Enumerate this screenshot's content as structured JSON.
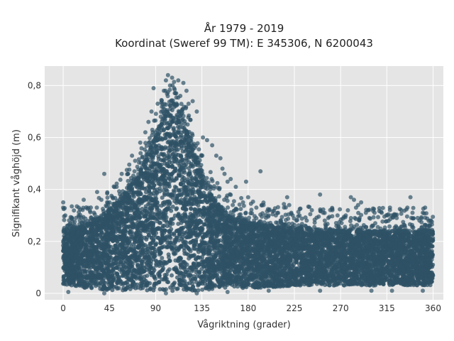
{
  "chart_data": {
    "type": "scatter",
    "title": "År 1979 - 2019",
    "subtitle": "Koordinat (Sweref 99 TM): E 345306, N 6200043",
    "xlabel": "Vågriktning (grader)",
    "ylabel": "Signifikant våghöjd (m)",
    "xlim": [
      -18,
      370
    ],
    "ylim": [
      -0.025,
      0.875
    ],
    "xticks": [
      0,
      45,
      90,
      135,
      180,
      225,
      270,
      315,
      360
    ],
    "xtick_labels": [
      "0",
      "45",
      "90",
      "135",
      "180",
      "225",
      "270",
      "315",
      "360"
    ],
    "yticks": [
      0,
      0.2,
      0.4,
      0.6,
      0.8
    ],
    "ytick_labels": [
      "0",
      "0,2",
      "0,4",
      "0,6",
      "0,8"
    ],
    "grid": true,
    "marker_color": "#2f5266",
    "plot_background": "#e5e5e5",
    "envelope": {
      "direction": [
        0,
        10,
        20,
        30,
        45,
        60,
        75,
        90,
        100,
        105,
        110,
        120,
        130,
        140,
        150,
        160,
        170,
        180,
        200,
        225,
        270,
        315,
        360
      ],
      "upper_hs": [
        0.24,
        0.25,
        0.26,
        0.28,
        0.32,
        0.38,
        0.47,
        0.6,
        0.7,
        0.74,
        0.72,
        0.63,
        0.52,
        0.4,
        0.34,
        0.3,
        0.28,
        0.27,
        0.26,
        0.25,
        0.24,
        0.24,
        0.24
      ],
      "lower_hs": [
        0.03,
        0.03,
        0.02,
        0.02,
        0.01,
        0.01,
        0.01,
        0.01,
        0.01,
        0.01,
        0.01,
        0.01,
        0.01,
        0.01,
        0.02,
        0.02,
        0.02,
        0.02,
        0.02,
        0.03,
        0.03,
        0.03,
        0.03
      ]
    },
    "outliers": [
      {
        "x": 0,
        "y": 0.35
      },
      {
        "x": 0,
        "y": 0.33
      },
      {
        "x": 2,
        "y": 0.3
      },
      {
        "x": 4,
        "y": 0.26
      },
      {
        "x": 20,
        "y": 0.36
      },
      {
        "x": 27,
        "y": 0.29
      },
      {
        "x": 30,
        "y": 0.31
      },
      {
        "x": 33,
        "y": 0.39
      },
      {
        "x": 40,
        "y": 0.46
      },
      {
        "x": 45,
        "y": 0.35
      },
      {
        "x": 48,
        "y": 0.37
      },
      {
        "x": 50,
        "y": 0.34
      },
      {
        "x": 52,
        "y": 0.41
      },
      {
        "x": 57,
        "y": 0.46
      },
      {
        "x": 63,
        "y": 0.46
      },
      {
        "x": 67,
        "y": 0.53
      },
      {
        "x": 70,
        "y": 0.51
      },
      {
        "x": 75,
        "y": 0.58
      },
      {
        "x": 80,
        "y": 0.62
      },
      {
        "x": 83,
        "y": 0.66
      },
      {
        "x": 86,
        "y": 0.7
      },
      {
        "x": 88,
        "y": 0.79
      },
      {
        "x": 92,
        "y": 0.73
      },
      {
        "x": 95,
        "y": 0.68
      },
      {
        "x": 98,
        "y": 0.78
      },
      {
        "x": 100,
        "y": 0.82
      },
      {
        "x": 102,
        "y": 0.84
      },
      {
        "x": 104,
        "y": 0.8
      },
      {
        "x": 106,
        "y": 0.83
      },
      {
        "x": 108,
        "y": 0.79
      },
      {
        "x": 110,
        "y": 0.77
      },
      {
        "x": 112,
        "y": 0.82
      },
      {
        "x": 114,
        "y": 0.76
      },
      {
        "x": 117,
        "y": 0.81
      },
      {
        "x": 120,
        "y": 0.78
      },
      {
        "x": 122,
        "y": 0.73
      },
      {
        "x": 126,
        "y": 0.74
      },
      {
        "x": 130,
        "y": 0.7
      },
      {
        "x": 136,
        "y": 0.6
      },
      {
        "x": 140,
        "y": 0.59
      },
      {
        "x": 145,
        "y": 0.57
      },
      {
        "x": 149,
        "y": 0.53
      },
      {
        "x": 153,
        "y": 0.52
      },
      {
        "x": 155,
        "y": 0.48
      },
      {
        "x": 157,
        "y": 0.46
      },
      {
        "x": 160,
        "y": 0.43
      },
      {
        "x": 163,
        "y": 0.44
      },
      {
        "x": 168,
        "y": 0.41
      },
      {
        "x": 175,
        "y": 0.35
      },
      {
        "x": 178,
        "y": 0.43
      },
      {
        "x": 180,
        "y": 0.37
      },
      {
        "x": 188,
        "y": 0.33
      },
      {
        "x": 192,
        "y": 0.47
      },
      {
        "x": 195,
        "y": 0.34
      },
      {
        "x": 200,
        "y": 0.3
      },
      {
        "x": 207,
        "y": 0.3
      },
      {
        "x": 212,
        "y": 0.27
      },
      {
        "x": 215,
        "y": 0.33
      },
      {
        "x": 218,
        "y": 0.37
      },
      {
        "x": 220,
        "y": 0.34
      },
      {
        "x": 222,
        "y": 0.31
      },
      {
        "x": 227,
        "y": 0.28
      },
      {
        "x": 230,
        "y": 0.3
      },
      {
        "x": 237,
        "y": 0.28
      },
      {
        "x": 242,
        "y": 0.32
      },
      {
        "x": 250,
        "y": 0.38
      },
      {
        "x": 253,
        "y": 0.31
      },
      {
        "x": 258,
        "y": 0.29
      },
      {
        "x": 262,
        "y": 0.32
      },
      {
        "x": 267,
        "y": 0.3
      },
      {
        "x": 275,
        "y": 0.3
      },
      {
        "x": 280,
        "y": 0.37
      },
      {
        "x": 283,
        "y": 0.36
      },
      {
        "x": 285,
        "y": 0.33
      },
      {
        "x": 287,
        "y": 0.34
      },
      {
        "x": 290,
        "y": 0.35
      },
      {
        "x": 298,
        "y": 0.29
      },
      {
        "x": 303,
        "y": 0.31
      },
      {
        "x": 310,
        "y": 0.31
      },
      {
        "x": 318,
        "y": 0.33
      },
      {
        "x": 323,
        "y": 0.3
      },
      {
        "x": 329,
        "y": 0.32
      },
      {
        "x": 335,
        "y": 0.33
      },
      {
        "x": 338,
        "y": 0.37
      },
      {
        "x": 340,
        "y": 0.31
      },
      {
        "x": 345,
        "y": 0.29
      },
      {
        "x": 350,
        "y": 0.31
      },
      {
        "x": 358,
        "y": 0.28
      },
      {
        "x": 5,
        "y": 0.005
      },
      {
        "x": 40,
        "y": 0.0
      },
      {
        "x": 100,
        "y": 0.0
      },
      {
        "x": 130,
        "y": 0.0
      },
      {
        "x": 160,
        "y": 0.005
      },
      {
        "x": 200,
        "y": 0.01
      },
      {
        "x": 250,
        "y": 0.01
      },
      {
        "x": 300,
        "y": 0.01
      },
      {
        "x": 320,
        "y": 0.01
      },
      {
        "x": 350,
        "y": 0.01
      }
    ]
  }
}
